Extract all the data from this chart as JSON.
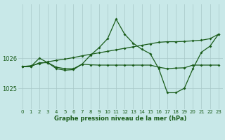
{
  "title": "Graphe pression niveau de la mer (hPa)",
  "bg_color": "#c8e8e8",
  "grid_color": "#a8c8c8",
  "line_color": "#1a5c1a",
  "x_labels": [
    "0",
    "1",
    "2",
    "3",
    "4",
    "5",
    "6",
    "7",
    "8",
    "9",
    "10",
    "11",
    "12",
    "13",
    "14",
    "15",
    "16",
    "17",
    "18",
    "19",
    "20",
    "21",
    "22",
    "23"
  ],
  "ylim": [
    1024.3,
    1027.8
  ],
  "yticks": [
    1025.0,
    1026.0
  ],
  "series1": [
    1025.72,
    1025.75,
    1025.82,
    1025.88,
    1025.93,
    1025.97,
    1026.02,
    1026.08,
    1026.13,
    1026.18,
    1026.23,
    1026.28,
    1026.33,
    1026.38,
    1026.43,
    1026.48,
    1026.53,
    1026.55,
    1026.55,
    1026.56,
    1026.58,
    1026.6,
    1026.65,
    1026.8
  ],
  "series2": [
    1025.72,
    1025.72,
    1026.0,
    1025.85,
    1025.65,
    1025.6,
    1025.62,
    1025.8,
    1026.1,
    1026.35,
    1026.65,
    1027.3,
    1026.8,
    1026.5,
    1026.3,
    1026.15,
    1025.65,
    1024.85,
    1024.85,
    1025.0,
    1025.65,
    1026.2,
    1026.4,
    1026.8
  ],
  "series3": [
    1025.72,
    1025.72,
    1025.85,
    1025.85,
    1025.7,
    1025.65,
    1025.65,
    1025.8,
    1025.78,
    1025.77,
    1025.77,
    1025.77,
    1025.77,
    1025.77,
    1025.77,
    1025.77,
    1025.7,
    1025.65,
    1025.67,
    1025.68,
    1025.77,
    1025.77,
    1025.77,
    1025.77
  ]
}
